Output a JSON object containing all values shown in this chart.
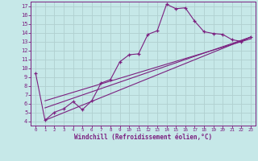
{
  "xlabel": "Windchill (Refroidissement éolien,°C)",
  "bg_color": "#c6e8e8",
  "line_color": "#7b2080",
  "grid_color": "#b0d0d0",
  "xlim": [
    -0.5,
    23.5
  ],
  "ylim": [
    3.5,
    17.5
  ],
  "yticks": [
    4,
    5,
    6,
    7,
    8,
    9,
    10,
    11,
    12,
    13,
    14,
    15,
    16,
    17
  ],
  "xticks": [
    0,
    1,
    2,
    3,
    4,
    5,
    6,
    7,
    8,
    9,
    10,
    11,
    12,
    13,
    14,
    15,
    16,
    17,
    18,
    19,
    20,
    21,
    22,
    23
  ],
  "line1_x": [
    0,
    1,
    2,
    3,
    4,
    5,
    6,
    7,
    8,
    9,
    10,
    11,
    12,
    13,
    14,
    15,
    16,
    17,
    18,
    19,
    20,
    21,
    22,
    23
  ],
  "line1_y": [
    9.4,
    4.1,
    5.0,
    5.4,
    6.2,
    5.3,
    6.3,
    8.3,
    8.7,
    10.7,
    11.5,
    11.6,
    13.8,
    14.2,
    17.2,
    16.7,
    16.8,
    15.3,
    14.1,
    13.9,
    13.8,
    13.2,
    13.0,
    13.5
  ],
  "line2_x": [
    1,
    23
  ],
  "line2_y": [
    4.1,
    13.5
  ],
  "line3_x": [
    1,
    23
  ],
  "line3_y": [
    5.5,
    13.5
  ],
  "line4_x": [
    1,
    23
  ],
  "line4_y": [
    6.3,
    13.3
  ]
}
